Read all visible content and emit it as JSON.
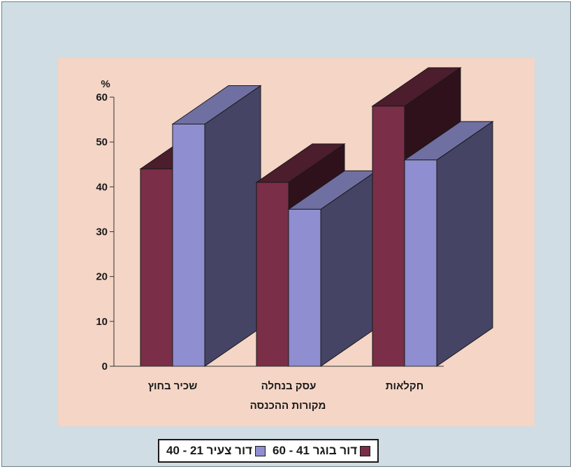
{
  "chart_data": {
    "type": "bar",
    "three_d": true,
    "ylabel": "%",
    "xlabel": "מקורות ההכנסה",
    "ylim": [
      0,
      60
    ],
    "yticks": [
      0,
      10,
      20,
      30,
      40,
      50,
      60
    ],
    "categories": [
      "שכיר בחוץ",
      "עסק בנחלה",
      "חקלאות"
    ],
    "series": [
      {
        "name": "דור בוגר 41 - 60",
        "color": "#7a2e47",
        "values": [
          44,
          41,
          58
        ]
      },
      {
        "name": "דור צעיר 21 - 40",
        "color": "#8f8ed0",
        "values": [
          54,
          35,
          46
        ]
      }
    ],
    "legend_position": "bottom"
  }
}
